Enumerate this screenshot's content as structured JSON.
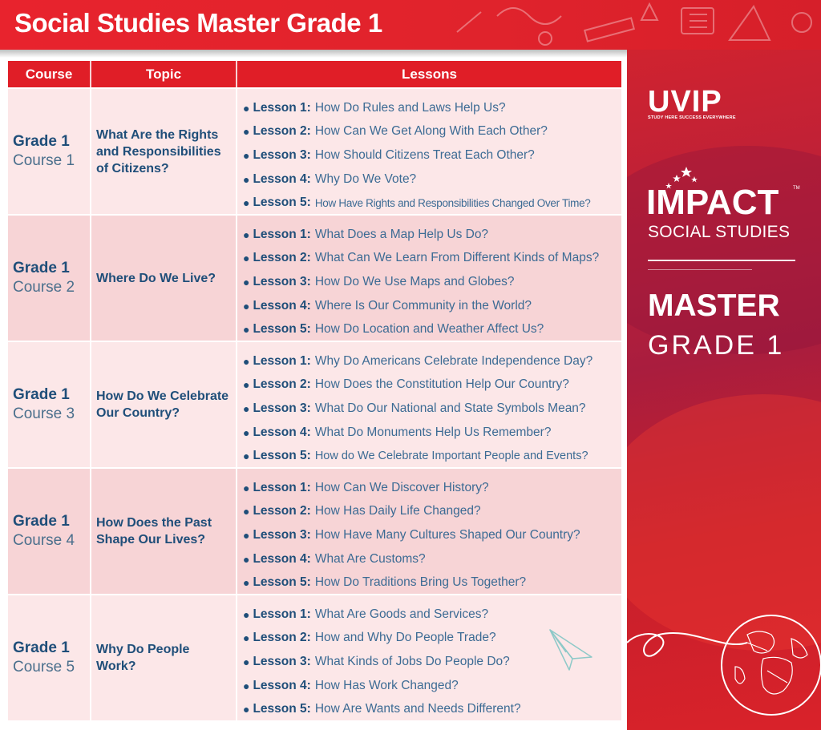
{
  "header": {
    "title": "Social Studies Master Grade 1"
  },
  "side": {
    "brand": "UVIP",
    "brand_tagline": "STUDY HERE SUCCESS EVERYWHERE",
    "product": "IMPACT",
    "tm": "TM",
    "subtitle": "SOCIAL STUDIES",
    "master": "MASTER",
    "grade": "GRADE 1"
  },
  "table": {
    "headers": [
      "Course",
      "Topic",
      "Lessons"
    ],
    "rows": [
      {
        "grade": "Grade 1",
        "course": "Course 1",
        "topic": "What Are the Rights and Responsibilities of Citizens?",
        "lessons": [
          {
            "label": "Lesson 1:",
            "text": "How Do Rules and Laws Help Us?"
          },
          {
            "label": "Lesson 2:",
            "text": "How Can We Get Along With Each Other?"
          },
          {
            "label": "Lesson 3:",
            "text": "How Should Citizens Treat Each Other?"
          },
          {
            "label": "Lesson 4:",
            "text": "Why Do We Vote?"
          },
          {
            "label": "Lesson 5:",
            "text": "How Have Rights and Responsibilities Changed Over Time?"
          }
        ]
      },
      {
        "grade": "Grade 1",
        "course": "Course 2",
        "topic": "Where Do We Live?",
        "lessons": [
          {
            "label": "Lesson 1:",
            "text": "What Does a Map Help Us Do?"
          },
          {
            "label": "Lesson 2:",
            "text": "What Can We Learn From Different Kinds of Maps?"
          },
          {
            "label": "Lesson 3:",
            "text": "How Do We Use Maps and Globes?"
          },
          {
            "label": "Lesson 4:",
            "text": "Where Is Our Community in the World?"
          },
          {
            "label": "Lesson 5:",
            "text": "How Do Location and Weather Affect Us?"
          }
        ]
      },
      {
        "grade": "Grade 1",
        "course": "Course 3",
        "topic": "How Do We Celebrate Our Country?",
        "lessons": [
          {
            "label": "Lesson 1:",
            "text": "Why Do Americans Celebrate Independence Day?"
          },
          {
            "label": "Lesson 2:",
            "text": "How Does the Constitution Help Our Country?"
          },
          {
            "label": "Lesson 3:",
            "text": "What Do Our National and State Symbols Mean?"
          },
          {
            "label": "Lesson 4:",
            "text": "What Do Monuments Help Us Remember?"
          },
          {
            "label": "Lesson 5:",
            "text": "How do We Celebrate Important People and Events?"
          }
        ]
      },
      {
        "grade": "Grade 1",
        "course": "Course 4",
        "topic": "How Does the Past Shape Our Lives?",
        "lessons": [
          {
            "label": "Lesson 1:",
            "text": "How Can We Discover History?"
          },
          {
            "label": "Lesson 2:",
            "text": "How Has Daily Life Changed?"
          },
          {
            "label": "Lesson 3:",
            "text": "How Have Many Cultures Shaped Our Country?"
          },
          {
            "label": "Lesson 4:",
            "text": "What Are Customs?"
          },
          {
            "label": "Lesson 5:",
            "text": "How Do Traditions Bring Us Together?"
          }
        ]
      },
      {
        "grade": "Grade 1",
        "course": "Course 5",
        "topic": "Why Do People Work?",
        "lessons": [
          {
            "label": "Lesson 1:",
            "text": "What Are Goods and Services?"
          },
          {
            "label": "Lesson 2:",
            "text": "How and Why Do People Trade?"
          },
          {
            "label": "Lesson 3:",
            "text": "What Kinds of Jobs Do People Do?"
          },
          {
            "label": "Lesson 4:",
            "text": "How Has Work Changed?"
          },
          {
            "label": "Lesson 5:",
            "text": "How Are Wants and Needs Different?"
          }
        ]
      }
    ]
  },
  "colors": {
    "header_red": "#e01e27",
    "navy": "#1f4e79",
    "lesson_blue": "#3c6b94",
    "row_light": "#fce7e8",
    "row_dark": "#f7d4d6"
  }
}
